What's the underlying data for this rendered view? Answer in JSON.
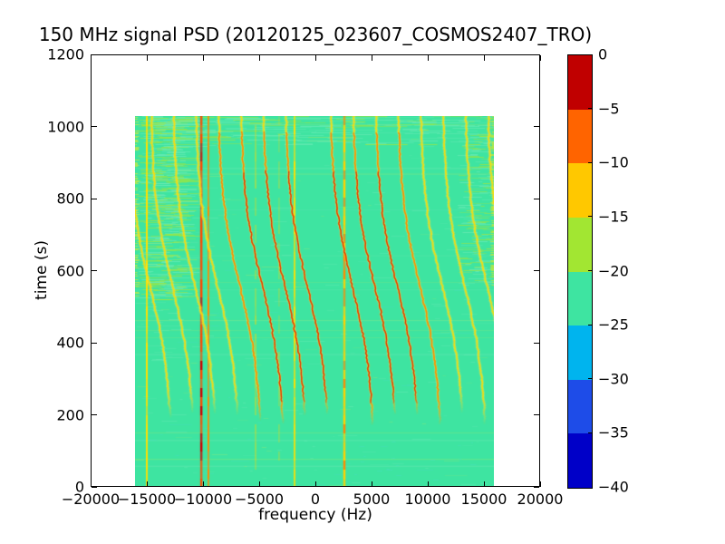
{
  "chart_data": {
    "type": "heatmap",
    "subtype": "spectrogram",
    "title": "150 MHz signal PSD (20120125_023607_COSMOS2407_TRO)",
    "xlabel": "frequency (Hz)",
    "ylabel": "time (s)",
    "xlim": [
      -20000,
      20000
    ],
    "ylim": [
      0,
      1200
    ],
    "x_ticks": [
      -20000,
      -15000,
      -10000,
      -5000,
      0,
      5000,
      10000,
      15000,
      20000
    ],
    "x_tick_labels": [
      "−20000",
      "−15000",
      "−10000",
      "−5000",
      "0",
      "5000",
      "10000",
      "15000",
      "20000"
    ],
    "y_ticks": [
      0,
      200,
      400,
      600,
      800,
      1000,
      1200
    ],
    "y_tick_labels": [
      "0",
      "200",
      "400",
      "600",
      "800",
      "1000",
      "1200"
    ],
    "grid": false,
    "data_extent": {
      "freq_hz": [
        -16000,
        16000
      ],
      "time_s": [
        0,
        1030
      ]
    },
    "background_level_db": -22,
    "colorbar": {
      "position": "right",
      "range_db": [
        0,
        -40
      ],
      "tick_labels": [
        "0",
        "−5",
        "−10",
        "−15",
        "−20",
        "−25",
        "−30",
        "−35",
        "−40"
      ],
      "segment_colors_top_to_bottom": [
        "#c00000",
        "#ff6400",
        "#ffc800",
        "#a2e632",
        "#3ee4a1",
        "#00b4ee",
        "#1e4ce8",
        "#0000c8"
      ]
    },
    "fixed_carriers": [
      {
        "freq_hz": -15000,
        "color": "#ffe000",
        "width": 2.0,
        "alpha": 0.95
      },
      {
        "freq_hz": -10150,
        "color": "#ff4600",
        "width": 2.5,
        "alpha": 0.95
      },
      {
        "freq_hz": -9520,
        "color": "#ff8c00",
        "width": 2.0,
        "alpha": 0.9
      },
      {
        "freq_hz": -5320,
        "color": "#ffd800",
        "width": 1.5,
        "alpha": 0.5
      },
      {
        "freq_hz": -3230,
        "color": "#ffd800",
        "width": 1.2,
        "alpha": 0.4
      },
      {
        "freq_hz": -1850,
        "color": "#ffe000",
        "width": 2.0,
        "alpha": 0.85
      },
      {
        "freq_hz": 2580,
        "color": "#ffd000",
        "width": 2.5,
        "alpha": 0.95
      }
    ],
    "doppler_tracks": {
      "tone_freqs_hz": [
        -14700,
        -12700,
        -10700,
        -8700,
        -6700,
        -4700,
        -2700,
        -700,
        3300,
        5300,
        7300,
        9300,
        11300,
        13300,
        15300,
        17300
      ],
      "doppler_amplitude_hz": 2000,
      "closest_approach_s": 555,
      "time_constant_s": 260,
      "signal_start_s": 170,
      "signal_end_s": 1030,
      "track_color_weak": "#ffdc00",
      "track_color_mid": "#ff7800",
      "track_color_strong": "#e02000"
    },
    "noise_zones": {
      "top_band_start_s": 950,
      "left_band_max_hz": -12000,
      "left_band_start_s": 520,
      "right_band_min_hz": 12700,
      "right_band_start_s": 560,
      "streak_colors": [
        "#6ceab6",
        "#a2e63c",
        "#8ce87a",
        "#4adcc8"
      ]
    }
  }
}
